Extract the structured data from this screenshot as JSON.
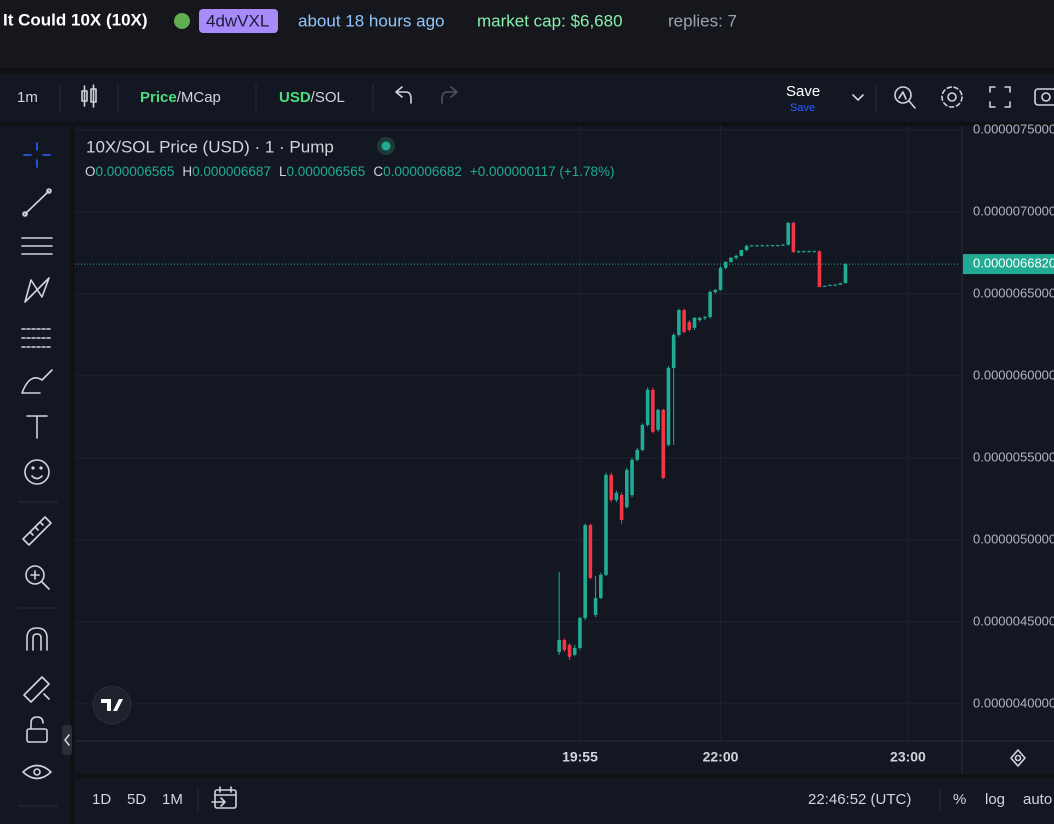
{
  "header": {
    "token": "It Could 10X (10X)",
    "creator": "4dwVXL",
    "age": "about 18 hours ago",
    "market_cap": "market cap: $6,680",
    "replies": "replies: 7"
  },
  "toolbar": {
    "interval": "1m",
    "price": "Price",
    "mcap": "/MCap",
    "usd": "USD",
    "sol": "/SOL",
    "save": "Save",
    "save_sub": "Save"
  },
  "bottom_bar": {
    "ranges": [
      "1D",
      "5D",
      "1M"
    ],
    "clock": "22:46:52 (UTC)",
    "percent": "%",
    "log": "log",
    "auto": "auto"
  },
  "chart_data": {
    "type": "candlestick",
    "title": "10X/SOL Price (USD) · 1 · Pump",
    "legend": [
      {
        "key": "O",
        "value": "0.000006565"
      },
      {
        "key": "H",
        "value": "0.000006687"
      },
      {
        "key": "L",
        "value": "0.000006565"
      },
      {
        "key": "C",
        "value": "0.000006682"
      }
    ],
    "change": "+0.000000117 (+1.78%)",
    "up_color": "#22ab94",
    "down_color": "#f23645",
    "open": [
      4.317e-06,
      4.39e-06,
      4.36e-06,
      4.299e-06,
      4.341e-06,
      4.524e-06,
      5.091e-06,
      4.543e-06,
      4.646e-06,
      4.787e-06,
      5.396e-06,
      5.244e-06,
      5.274e-06,
      5.2e-06,
      5.274e-06,
      5.488e-06,
      5.549e-06,
      5.701e-06,
      5.915e-06,
      5.671e-06,
      5.793e-06,
      5.579e-06,
      6.049e-06,
      6.25e-06,
      6.402e-06,
      6.329e-06,
      6.293e-06,
      6.341e-06,
      6.354e-06,
      6.36e-06,
      6.512e-06,
      6.524e-06,
      6.659e-06,
      6.695e-06,
      6.72e-06,
      6.732e-06,
      6.768e-06,
      6.793e-06,
      6.795e-06,
      6.795e-06,
      6.796e-06,
      6.796e-06,
      6.797e-06,
      6.798e-06,
      6.8e-06,
      6.933e-06,
      6.756e-06,
      6.76e-06,
      6.76e-06,
      6.76e-06,
      6.76e-06,
      6.549e-06,
      6.549e-06,
      6.555e-06,
      6.556e-06,
      6.565e-06
    ],
    "high": [
      4.805e-06,
      4.4e-06,
      4.37e-06,
      4.36e-06,
      4.53e-06,
      5.1e-06,
      5.1e-06,
      4.78e-06,
      4.8e-06,
      5.41e-06,
      5.41e-06,
      5.3e-06,
      5.29e-06,
      5.44e-06,
      5.5e-06,
      5.56e-06,
      5.71e-06,
      5.93e-06,
      5.93e-06,
      5.8e-06,
      5.8e-06,
      6.06e-06,
      6.26e-06,
      6.41e-06,
      6.41e-06,
      6.34e-06,
      6.36e-06,
      6.36e-06,
      6.365e-06,
      6.52e-06,
      6.53e-06,
      6.67e-06,
      6.7e-06,
      6.725e-06,
      6.74e-06,
      6.77e-06,
      6.8e-06,
      6.8e-06,
      6.8e-06,
      6.8e-06,
      6.8e-06,
      6.8e-06,
      6.8e-06,
      6.805e-06,
      6.94e-06,
      6.94e-06,
      6.765e-06,
      6.765e-06,
      6.765e-06,
      6.765e-06,
      6.765e-06,
      6.552e-06,
      6.557e-06,
      6.56e-06,
      6.568e-06,
      6.687e-06
    ],
    "low": [
      4.299e-06,
      4.317e-06,
      4.268e-06,
      4.29e-06,
      4.33e-06,
      4.51e-06,
      4.76e-06,
      4.53e-06,
      4.64e-06,
      4.78e-06,
      5.23e-06,
      5.23e-06,
      5.1e-06,
      5.19e-06,
      5.26e-06,
      5.48e-06,
      5.54e-06,
      5.69e-06,
      5.65e-06,
      5.66e-06,
      5.37e-06,
      5.57e-06,
      5.579e-06,
      6.24e-06,
      6.26e-06,
      6.27e-06,
      6.28e-06,
      6.33e-06,
      6.34e-06,
      6.35e-06,
      6.5e-06,
      6.52e-06,
      6.65e-06,
      6.69e-06,
      6.71e-06,
      6.73e-06,
      6.76e-06,
      6.79e-06,
      6.79e-06,
      6.79e-06,
      6.79e-06,
      6.79e-06,
      6.79e-06,
      6.795e-06,
      6.795e-06,
      6.75e-06,
      6.75e-06,
      6.755e-06,
      6.755e-06,
      6.755e-06,
      6.54e-06,
      6.545e-06,
      6.548e-06,
      6.552e-06,
      6.555e-06,
      6.565e-06
    ],
    "close": [
      4.39e-06,
      4.329e-06,
      4.287e-06,
      4.341e-06,
      4.524e-06,
      5.091e-06,
      4.768e-06,
      4.646e-06,
      4.787e-06,
      5.396e-06,
      5.244e-06,
      5.287e-06,
      5.122e-06,
      5.427e-06,
      5.488e-06,
      5.549e-06,
      5.701e-06,
      5.915e-06,
      5.659e-06,
      5.793e-06,
      5.378e-06,
      6.049e-06,
      6.25e-06,
      6.402e-06,
      6.268e-06,
      6.28e-06,
      6.354e-06,
      6.354e-06,
      6.36e-06,
      6.512e-06,
      6.524e-06,
      6.659e-06,
      6.695e-06,
      6.72e-06,
      6.732e-06,
      6.768e-06,
      6.793e-06,
      6.795e-06,
      6.795e-06,
      6.796e-06,
      6.796e-06,
      6.797e-06,
      6.798e-06,
      6.8e-06,
      6.933e-06,
      6.756e-06,
      6.76e-06,
      6.76e-06,
      6.76e-06,
      6.76e-06,
      6.543e-06,
      6.549e-06,
      6.555e-06,
      6.556e-06,
      6.565e-06,
      6.682e-06
    ],
    "xlim": [
      -93,
      77
    ],
    "xticks": [
      {
        "value": 4,
        "label": "19:55"
      },
      {
        "value": 31,
        "label": "22:00"
      },
      {
        "value": 67,
        "label": "23:00"
      }
    ],
    "ylim": [
      3.78e-06,
      7.53e-06
    ],
    "yticks": [
      {
        "value": 7.5e-06,
        "label": "0.0000075000"
      },
      {
        "value": 7e-06,
        "label": "0.0000070000"
      },
      {
        "value": 6.5e-06,
        "label": "0.0000065000"
      },
      {
        "value": 6e-06,
        "label": "0.0000060000"
      },
      {
        "value": 5.5e-06,
        "label": "0.0000055000"
      },
      {
        "value": 5e-06,
        "label": "0.0000050000"
      },
      {
        "value": 4.5e-06,
        "label": "0.0000045000"
      },
      {
        "value": 4e-06,
        "label": "0.0000040000"
      }
    ],
    "last_price": {
      "value": 6.682e-06,
      "label": "0.0000066820"
    },
    "grid": true
  }
}
